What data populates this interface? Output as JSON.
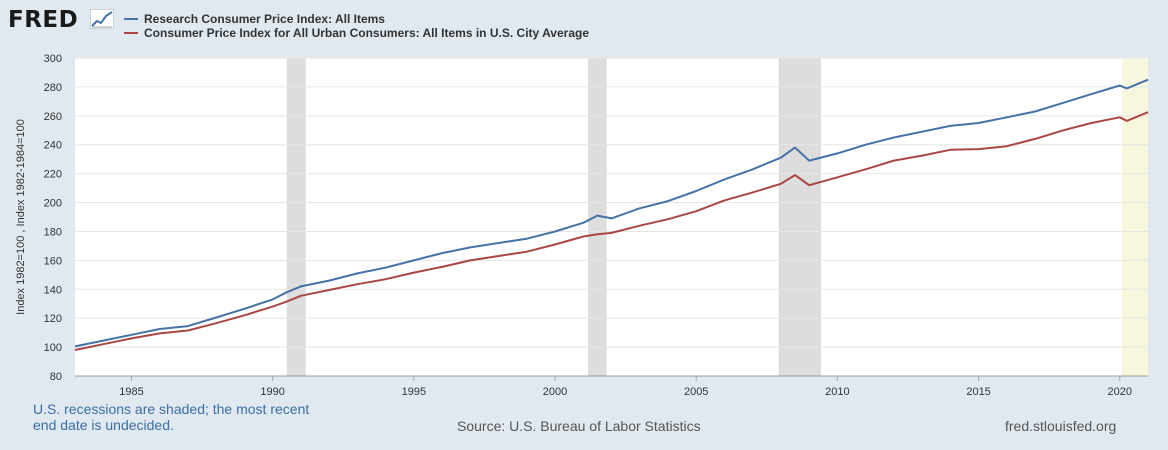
{
  "brand": {
    "name": "FRED"
  },
  "footer": {
    "note_line1": "U.S. recessions are shaded; the most recent",
    "note_line2": "end date is undecided.",
    "source": "Source: U.S. Bureau of Labor Statistics",
    "url": "fred.stlouisfed.org"
  },
  "colors": {
    "series1": "#4572a7",
    "series2": "#aa4643",
    "recession": "#dddddd",
    "recession_recent": "#f8f6dd",
    "plot_bg": "#ffffff",
    "page_bg": "#e1e9f0"
  },
  "chart_data": {
    "type": "line",
    "title": "",
    "xlabel": "",
    "ylabel": "Index 1982=100 , Index 1982-1984=100",
    "ylim": [
      80,
      300
    ],
    "yticks": [
      80,
      100,
      120,
      140,
      160,
      180,
      200,
      220,
      240,
      260,
      280,
      300
    ],
    "xlim": [
      1983.0,
      2021.0
    ],
    "xticks": [
      1985,
      1990,
      1995,
      2000,
      2005,
      2010,
      2015,
      2020
    ],
    "grid": true,
    "legend_position": "top-left",
    "recessions": [
      {
        "start": 1990.5,
        "end": 1991.17,
        "undecided_end": false
      },
      {
        "start": 2001.17,
        "end": 2001.83,
        "undecided_end": false
      },
      {
        "start": 2007.92,
        "end": 2009.42,
        "undecided_end": false
      },
      {
        "start": 2020.08,
        "end": 2021.0,
        "undecided_end": true
      }
    ],
    "series": [
      {
        "name": "Research Consumer Price Index: All Items",
        "x": [
          1983.0,
          1984.0,
          1985.0,
          1986.0,
          1987.0,
          1988.0,
          1989.0,
          1990.0,
          1990.5,
          1991.0,
          1992.0,
          1993.0,
          1994.0,
          1995.0,
          1996.0,
          1997.0,
          1998.0,
          1999.0,
          2000.0,
          2001.0,
          2001.5,
          2002.0,
          2003.0,
          2004.0,
          2005.0,
          2006.0,
          2007.0,
          2008.0,
          2008.5,
          2009.0,
          2010.0,
          2011.0,
          2012.0,
          2013.0,
          2014.0,
          2015.0,
          2016.0,
          2017.0,
          2018.0,
          2019.0,
          2020.0,
          2020.25,
          2021.0
        ],
        "y": [
          100.5,
          104.5,
          108.5,
          112.5,
          114.5,
          120.5,
          126.5,
          133,
          138,
          142,
          146,
          151,
          155,
          160,
          165,
          169,
          172,
          175,
          180,
          186,
          191,
          189,
          196,
          201,
          208,
          216,
          223,
          231,
          238,
          229,
          234,
          240,
          245,
          249,
          253,
          255,
          259,
          263,
          269,
          275,
          281,
          279,
          285
        ]
      },
      {
        "name": "Consumer Price Index for All Urban Consumers: All Items in U.S. City Average",
        "x": [
          1983.0,
          1984.0,
          1985.0,
          1986.0,
          1987.0,
          1988.0,
          1989.0,
          1990.0,
          1990.5,
          1991.0,
          1992.0,
          1993.0,
          1994.0,
          1995.0,
          1996.0,
          1997.0,
          1998.0,
          1999.0,
          2000.0,
          2001.0,
          2001.5,
          2002.0,
          2003.0,
          2004.0,
          2005.0,
          2006.0,
          2007.0,
          2008.0,
          2008.5,
          2009.0,
          2010.0,
          2011.0,
          2012.0,
          2013.0,
          2014.0,
          2015.0,
          2016.0,
          2017.0,
          2018.0,
          2019.0,
          2020.0,
          2020.25,
          2021.0
        ],
        "y": [
          98,
          102,
          106,
          109.5,
          111.5,
          116.5,
          122,
          128,
          131.5,
          135.5,
          139.5,
          143.5,
          147,
          151.5,
          155.5,
          160,
          163,
          166,
          171,
          176.5,
          178,
          179,
          184,
          188.5,
          194,
          201.5,
          207,
          213,
          219,
          212,
          217.5,
          223,
          229,
          232.5,
          236.5,
          237,
          239,
          244,
          250,
          255,
          259,
          256.5,
          262.5
        ]
      }
    ]
  }
}
